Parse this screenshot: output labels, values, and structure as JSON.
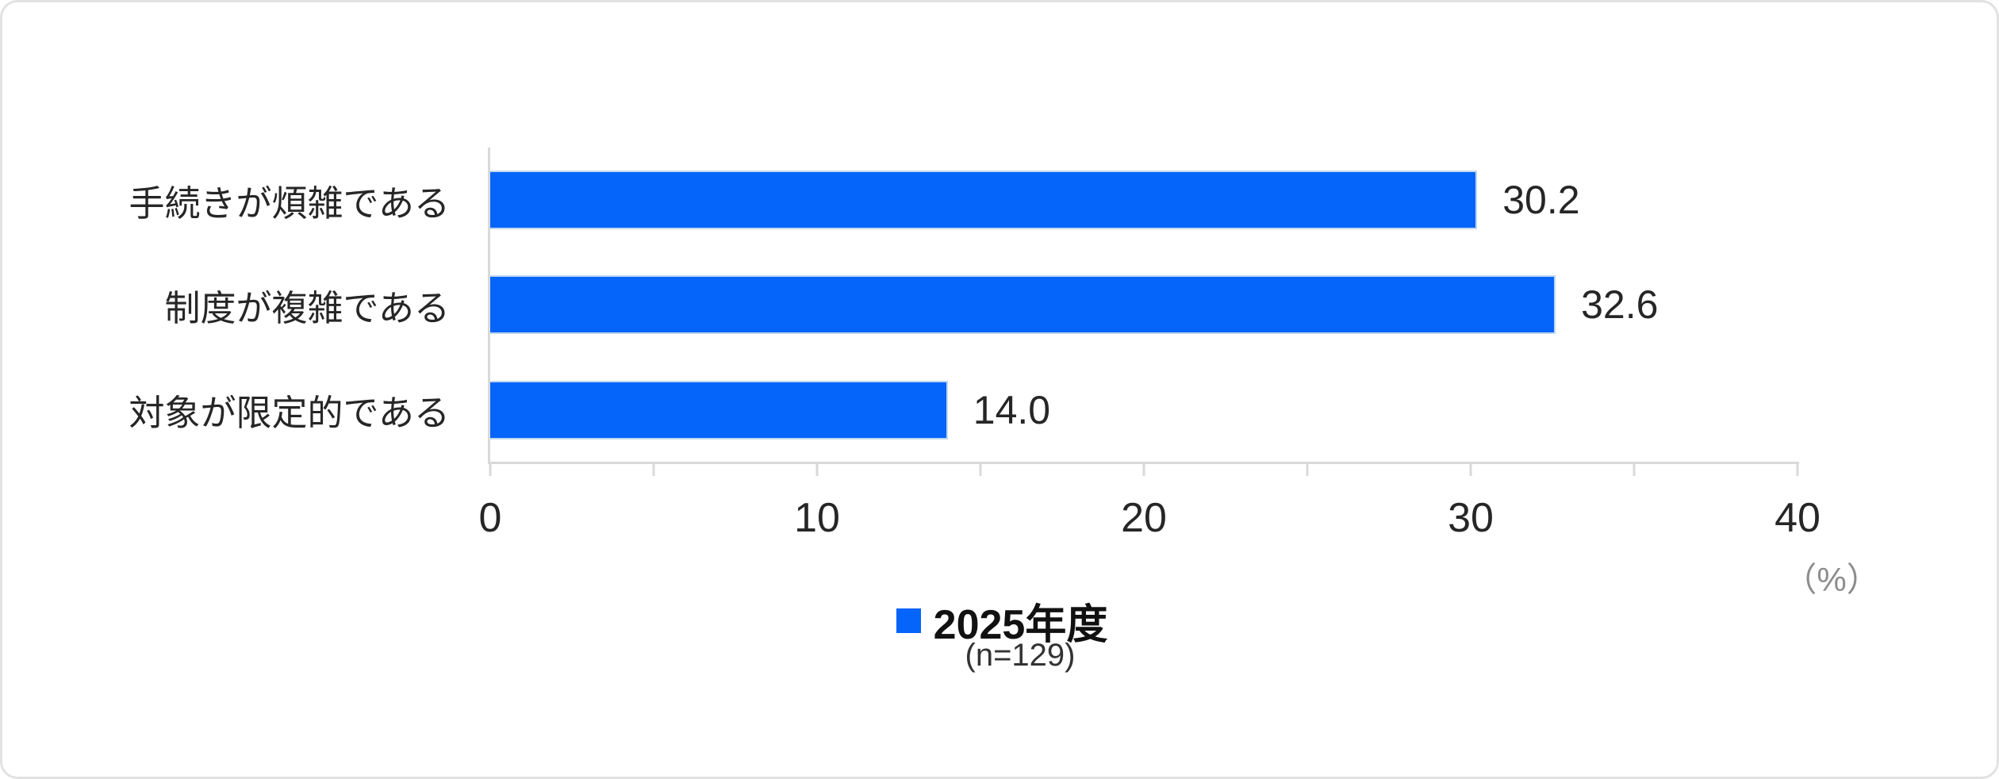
{
  "frame": {
    "background": "#FFFFFF",
    "border_color": "#E2E2E2"
  },
  "chart_data": {
    "type": "bar",
    "orientation": "horizontal",
    "title": "",
    "categories": [
      "手続きが煩雑である",
      "制度が複雑である",
      "対象が限定的である"
    ],
    "values": [
      30.2,
      32.6,
      14.0
    ],
    "value_labels": [
      "30.2",
      "32.6",
      "14.0"
    ],
    "xlabel": "",
    "ylabel": "",
    "xlim": [
      0,
      40
    ],
    "xticks": [
      0,
      10,
      20,
      30,
      40
    ],
    "xtick_labels": [
      "0",
      "10",
      "20",
      "30",
      "40"
    ],
    "minor_ticks": [
      0,
      5,
      10,
      15,
      20,
      25,
      30,
      35,
      40
    ],
    "grid": "off",
    "unit_label": "（%）",
    "legend": {
      "position": "bottom-center",
      "label": "2025年度",
      "n_label": "(n=129)",
      "swatch_color": "#0564FA"
    },
    "colors": {
      "bar_fill": "#0564FA",
      "bar_border": "#BDD7EE",
      "axis_line": "#D9D9D9",
      "category_text": "#262626",
      "value_text": "#262626",
      "tick_text": "#262626",
      "unit_text": "#8C8C8C",
      "legend_text": "#111111"
    }
  }
}
